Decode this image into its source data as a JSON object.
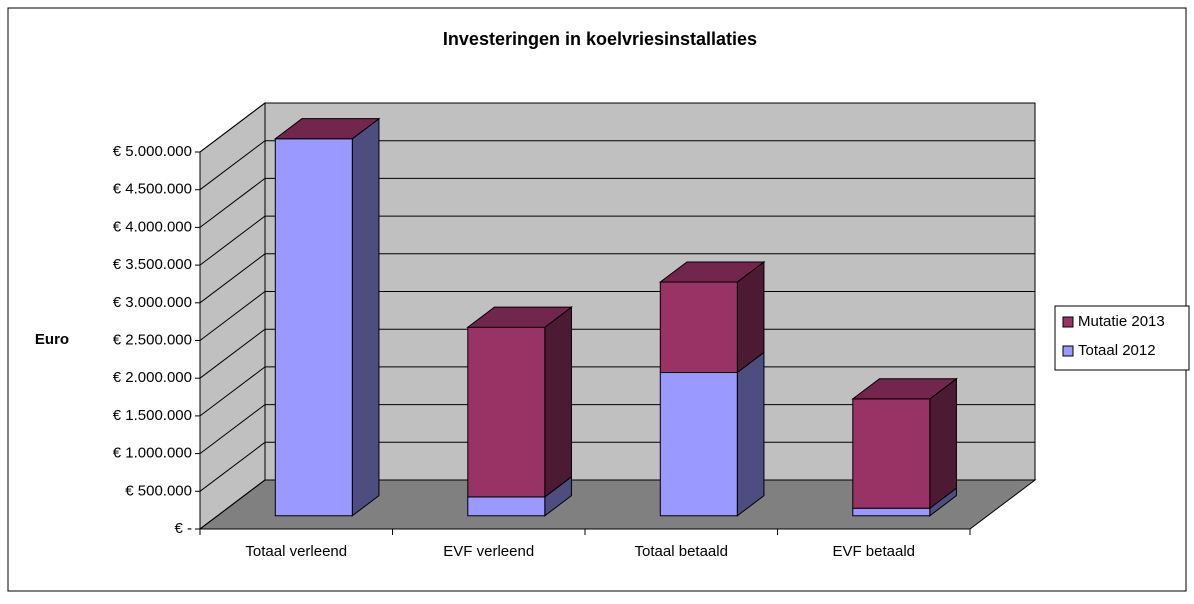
{
  "chart_data": {
    "type": "bar3d_stacked",
    "title": "Investeringen in koelvriesinstallaties",
    "y_label": "Euro",
    "categories": [
      "Totaal verleend",
      "EVF verleend",
      "Totaal betaald",
      "EVF betaald"
    ],
    "series": [
      {
        "name": "Totaal 2012",
        "color": "#9999ff",
        "values": [
          5000000,
          250000,
          1900000,
          100000
        ]
      },
      {
        "name": "Mutatie 2013",
        "color": "#993366",
        "values": [
          0,
          2250000,
          1200000,
          1450000
        ]
      }
    ],
    "ylim": [
      0,
      5000000
    ],
    "yticks": [
      {
        "value": 0,
        "label": "€ -"
      },
      {
        "value": 500000,
        "label": "€ 500.000"
      },
      {
        "value": 1000000,
        "label": "€ 1.000.000"
      },
      {
        "value": 1500000,
        "label": "€ 1.500.000"
      },
      {
        "value": 2000000,
        "label": "€ 2.000.000"
      },
      {
        "value": 2500000,
        "label": "€ 2.500.000"
      },
      {
        "value": 3000000,
        "label": "€ 3.000.000"
      },
      {
        "value": 3500000,
        "label": "€ 3.500.000"
      },
      {
        "value": 4000000,
        "label": "€ 4.000.000"
      },
      {
        "value": 4500000,
        "label": "€ 4.500.000"
      },
      {
        "value": 5000000,
        "label": "€ 5.000.000"
      }
    ],
    "grid": true,
    "legend": "right"
  }
}
